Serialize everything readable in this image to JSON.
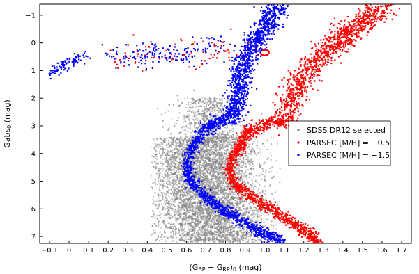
{
  "chart_data": {
    "type": "scatter",
    "title": "",
    "xlabel": "(G_BP − G_RP)_0 (mag)",
    "ylabel": "Gabs_0 (mag)",
    "xlim": [
      -0.15,
      1.75
    ],
    "ylim": [
      7.25,
      -1.4
    ],
    "y_inverted": true,
    "x_ticks": [
      "−0.1",
      "0",
      "0.1",
      "0.2",
      "0.3",
      "0.4",
      "0.5",
      "0.6",
      "0.7",
      "0.8",
      "0.9",
      "1.0",
      "1.1",
      "1.2",
      "1.3",
      "1.4",
      "1.5",
      "1.6",
      "1.7"
    ],
    "x_tick_values": [
      -0.1,
      0,
      0.1,
      0.2,
      0.3,
      0.4,
      0.5,
      0.6,
      0.7,
      0.8,
      0.9,
      1.0,
      1.1,
      1.2,
      1.3,
      1.4,
      1.5,
      1.6,
      1.7
    ],
    "y_ticks": [
      "−1",
      "0",
      "1",
      "2",
      "3",
      "4",
      "5",
      "6",
      "7"
    ],
    "y_tick_values": [
      -1,
      0,
      1,
      2,
      3,
      4,
      5,
      6,
      7
    ],
    "grid": false,
    "legend_position": "right",
    "series": [
      {
        "name": "SDSS DR12 selected",
        "color": "#808080",
        "marker": "small-dot",
        "distribution": "dense cloud: main sequence and turnoff",
        "x_range": [
          0.38,
          1.08
        ],
        "y_range": [
          1.7,
          7.2
        ]
      },
      {
        "name": "PARSEC [M/H] = −0.5",
        "color": "#ff0000",
        "marker": "small-dot",
        "main_sequence": [
          [
            1.28,
            7.2
          ],
          [
            1.2,
            6.8
          ],
          [
            1.1,
            6.3
          ],
          [
            1.0,
            5.9
          ],
          [
            0.9,
            5.4
          ],
          [
            0.85,
            5.1
          ],
          [
            0.82,
            4.6
          ],
          [
            0.84,
            4.1
          ],
          [
            0.88,
            3.7
          ],
          [
            0.9,
            3.3
          ]
        ],
        "subgiant_branch": [
          [
            0.9,
            3.3
          ],
          [
            0.95,
            3.1
          ],
          [
            1.02,
            2.9
          ],
          [
            1.1,
            2.8
          ]
        ],
        "giant_branch": [
          [
            1.1,
            2.8
          ],
          [
            1.15,
            1.8
          ],
          [
            1.2,
            1.2
          ],
          [
            1.28,
            0.5
          ],
          [
            1.4,
            -0.2
          ],
          [
            1.55,
            -1.0
          ],
          [
            1.62,
            -1.4
          ]
        ],
        "red_clump": [
          1.0,
          0.35
        ],
        "horizontal_branch": [
          [
            0.25,
            0.5
          ],
          [
            0.5,
            0.45
          ],
          [
            0.75,
            0.4
          ],
          [
            0.98,
            0.3
          ]
        ]
      },
      {
        "name": "PARSEC [M/H] = −1.5",
        "color": "#0000ff",
        "marker": "small-dot",
        "main_sequence": [
          [
            1.1,
            7.2
          ],
          [
            1.0,
            6.9
          ],
          [
            0.9,
            6.5
          ],
          [
            0.8,
            6.1
          ],
          [
            0.7,
            5.6
          ],
          [
            0.62,
            5.0
          ],
          [
            0.6,
            4.4
          ],
          [
            0.62,
            3.9
          ],
          [
            0.66,
            3.5
          ],
          [
            0.68,
            3.2
          ]
        ],
        "subgiant_branch": [
          [
            0.68,
            3.2
          ],
          [
            0.73,
            3.0
          ],
          [
            0.8,
            2.8
          ],
          [
            0.85,
            2.6
          ]
        ],
        "giant_branch": [
          [
            0.85,
            2.6
          ],
          [
            0.86,
            1.8
          ],
          [
            0.88,
            1.0
          ],
          [
            0.93,
            0.2
          ],
          [
            1.0,
            -0.6
          ],
          [
            1.08,
            -1.4
          ]
        ],
        "horizontal_branch": [
          [
            0.2,
            0.4
          ],
          [
            0.4,
            0.42
          ],
          [
            0.6,
            0.38
          ],
          [
            0.8,
            0.1
          ]
        ],
        "blue_hb_tail": [
          [
            0.1,
            0.4
          ],
          [
            0.0,
            0.7
          ],
          [
            -0.07,
            1.0
          ],
          [
            -0.1,
            1.1
          ]
        ]
      }
    ]
  }
}
